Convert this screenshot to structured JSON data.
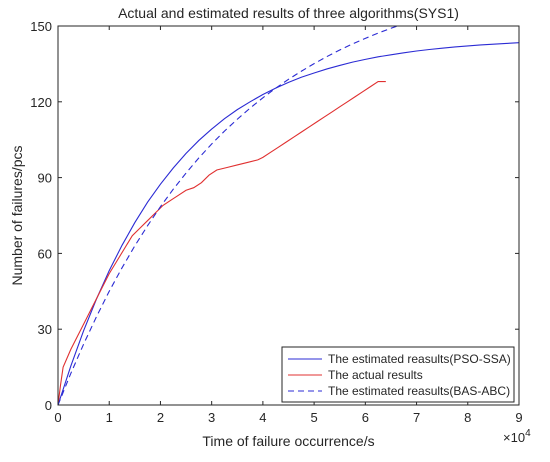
{
  "chart_data": {
    "type": "line",
    "title": "Actual and estimated results of three algorithms(SYS1)",
    "xlabel": "Time of failure occurrence/s",
    "ylabel": "Number of failures/pcs",
    "x_exponent_label": "×10",
    "x_exponent_power": "4",
    "xlim": [
      0,
      9
    ],
    "ylim": [
      0,
      150
    ],
    "x_ticks": [
      0,
      1,
      2,
      3,
      4,
      5,
      6,
      7,
      8,
      9
    ],
    "y_ticks": [
      0,
      30,
      60,
      90,
      120,
      150
    ],
    "x_tick_labels": [
      "0",
      "1",
      "2",
      "3",
      "4",
      "5",
      "6",
      "7",
      "8",
      "9"
    ],
    "y_tick_labels": [
      "0",
      "30",
      "60",
      "90",
      "120",
      "150"
    ],
    "grid": false,
    "legend_position": "bottom-right",
    "series": [
      {
        "name": "The estimated reasults(PSO-SSA)",
        "color": "#2b2bd4",
        "style": "solid",
        "x": [
          0,
          0.25,
          0.5,
          0.75,
          1.0,
          1.25,
          1.5,
          1.75,
          2.0,
          2.25,
          2.5,
          2.75,
          3.0,
          3.25,
          3.5,
          3.75,
          4.0,
          4.25,
          4.5,
          4.75,
          5.0,
          5.25,
          5.5,
          5.75,
          6.0,
          6.25,
          6.5,
          6.75,
          7.0,
          7.25,
          7.5,
          7.75,
          8.0,
          8.25,
          8.5,
          8.75,
          9.0
        ],
        "values": [
          0,
          15.4,
          29.4,
          41.9,
          53.2,
          63.2,
          72.2,
          80.3,
          87.4,
          93.8,
          99.6,
          104.7,
          109.2,
          113.3,
          116.9,
          120.0,
          122.9,
          125.4,
          127.7,
          129.7,
          131.4,
          133.0,
          134.4,
          135.7,
          136.8,
          137.8,
          138.6,
          139.4,
          140.1,
          140.7,
          141.2,
          141.7,
          142.1,
          142.5,
          142.8,
          143.1,
          143.4
        ]
      },
      {
        "name": "The actual results",
        "color": "#e03030",
        "style": "solid",
        "x": [
          0,
          0.05,
          0.1,
          0.25,
          0.4,
          0.55,
          0.7,
          0.85,
          1.0,
          1.15,
          1.3,
          1.45,
          1.6,
          1.75,
          1.9,
          2.05,
          2.2,
          2.35,
          2.5,
          2.65,
          2.8,
          2.95,
          3.1,
          3.3,
          3.5,
          3.7,
          3.9,
          4.0,
          4.15,
          4.3,
          4.45,
          4.6,
          4.75,
          4.9,
          5.05,
          5.2,
          5.35,
          5.5,
          5.65,
          5.8,
          5.95,
          6.1,
          6.25,
          6.4
        ],
        "values": [
          0,
          8,
          15,
          22,
          28,
          34,
          40,
          46,
          52,
          57,
          62,
          67,
          70,
          73,
          76,
          79,
          81,
          83,
          85,
          86,
          88,
          91,
          93,
          94,
          95,
          96,
          97,
          98,
          100,
          102,
          104,
          106,
          108,
          110,
          112,
          114,
          116,
          118,
          120,
          122,
          124,
          126,
          128,
          128
        ]
      },
      {
        "name": "The estimated reasults(BAS-ABC)",
        "color": "#2b2bd4",
        "style": "dashed",
        "x": [
          0,
          0.25,
          0.5,
          0.75,
          1.0,
          1.25,
          1.5,
          1.75,
          2.0,
          2.25,
          2.5,
          2.75,
          3.0,
          3.25,
          3.5,
          3.75,
          4.0,
          4.25,
          4.5,
          4.75,
          5.0,
          5.25,
          5.5,
          5.75,
          6.0,
          6.25,
          6.5,
          6.75,
          7.0,
          7.25,
          7.5,
          7.75,
          8.0,
          8.25,
          8.5,
          8.75,
          9.0
        ],
        "values": [
          0,
          12.5,
          24.1,
          34.9,
          45.0,
          54.3,
          63.0,
          71.0,
          78.5,
          85.4,
          91.8,
          97.8,
          103.3,
          108.4,
          113.1,
          117.5,
          121.6,
          125.4,
          128.9,
          132.1,
          135.1,
          137.9,
          140.5,
          142.9,
          145.1,
          147.2,
          149.1,
          150.9,
          152.5,
          154.0,
          155.4,
          156.7,
          157.9,
          159.0,
          160.0,
          160.9,
          161.8
        ]
      }
    ]
  }
}
